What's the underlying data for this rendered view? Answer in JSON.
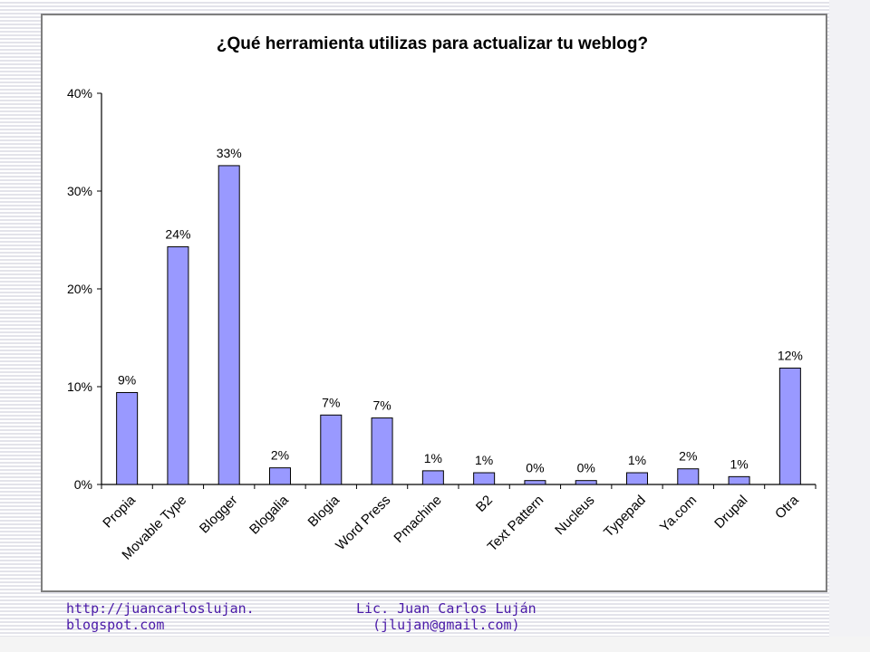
{
  "chart_data": {
    "type": "bar",
    "title": "¿Qué herramienta utilizas para actualizar tu weblog?",
    "categories": [
      "Propia",
      "Movable Type",
      "Blogger",
      "Blogalia",
      "Blogia",
      "Word Press",
      "Pmachine",
      "B2",
      "Text Pattern",
      "Nucleus",
      "Typepad",
      "Ya.com",
      "Drupal",
      "Otra"
    ],
    "values": [
      9.4,
      24.3,
      32.6,
      1.7,
      7.1,
      6.8,
      1.4,
      1.2,
      0.4,
      0.4,
      1.2,
      1.6,
      0.8,
      11.9
    ],
    "data_labels": [
      "9%",
      "24%",
      "33%",
      "2%",
      "7%",
      "7%",
      "1%",
      "1%",
      "0%",
      "0%",
      "1%",
      "2%",
      "1%",
      "12%"
    ],
    "yticks": [
      0,
      10,
      20,
      30,
      40
    ],
    "ytick_labels": [
      "0%",
      "10%",
      "20%",
      "30%",
      "40%"
    ],
    "ylim": [
      0,
      40
    ],
    "xlabel": "",
    "ylabel": "",
    "grid": false,
    "bar_color": "#9999ff",
    "bar_edge_color": "#000000"
  },
  "footer": {
    "left": "http://juancarloslujan.\nblogspot.com",
    "center": "Lic. Juan Carlos Luján\n(jlujan@gmail.com)"
  },
  "colors": {
    "footer_text": "#4a1aa8",
    "frame_border": "#7f7f7f"
  }
}
